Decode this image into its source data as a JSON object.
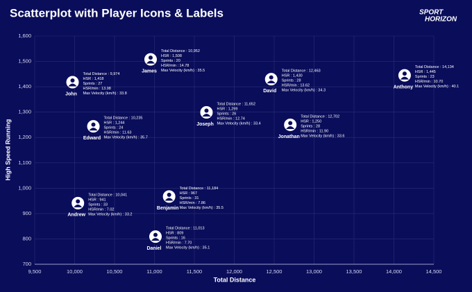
{
  "chart_data": {
    "type": "scatter",
    "title": "Scatterplot with Player Icons & Labels",
    "logo": [
      "SPORT",
      "HORIZON"
    ],
    "x_label": "Total Distance",
    "y_label": "High Speed Running",
    "xlim": [
      9500,
      14500
    ],
    "xticks": [
      {
        "value": 9500,
        "label": "9,500"
      },
      {
        "value": 10000,
        "label": "10,000"
      },
      {
        "value": 10500,
        "label": "10,500"
      },
      {
        "value": 11000,
        "label": "11,000"
      },
      {
        "value": 11500,
        "label": "11,500"
      },
      {
        "value": 12000,
        "label": "12,000"
      },
      {
        "value": 12500,
        "label": "12,500"
      },
      {
        "value": 13000,
        "label": "13,000"
      },
      {
        "value": 13500,
        "label": "13,500"
      },
      {
        "value": 14000,
        "label": "14,000"
      },
      {
        "value": 14500,
        "label": "14,500"
      }
    ],
    "ylim": [
      700,
      1600
    ],
    "yticks": [
      700,
      800,
      900,
      {
        "value": 1000,
        "label": "1,000"
      },
      {
        "value": 1100,
        "label": "1,100"
      },
      {
        "value": 1200,
        "label": "1,200"
      },
      {
        "value": 1300,
        "label": "1,300"
      },
      {
        "value": 1400,
        "label": "1,400"
      },
      {
        "value": 1500,
        "label": "1,500"
      },
      {
        "value": 1600,
        "label": "1,600"
      }
    ],
    "grid": true,
    "points": [
      {
        "name": "John",
        "x": 9974,
        "y": 1418,
        "details": [
          "Total Distance : 9,974",
          "HSR : 1,418",
          "Sprints : 27",
          "HSR/min : 13.98",
          "Max Velocity (km/h) : 33.8"
        ]
      },
      {
        "name": "James",
        "x": 10952,
        "y": 1508,
        "details": [
          "Total Distance : 10,952",
          "HSR : 1,508",
          "Sprints : 20",
          "HSR/min : 14.78",
          "Max Velocity (km/h) : 35.5"
        ]
      },
      {
        "name": "David",
        "x": 12463,
        "y": 1430,
        "details": [
          "Total Distance : 12,463",
          "HSR : 1,430",
          "Sprints : 28",
          "HSR/min : 13.62",
          "Max Velocity (km/h) : 34.3"
        ]
      },
      {
        "name": "Anthony",
        "x": 14134,
        "y": 1445,
        "details": [
          "Total Distance : 14,134",
          "HSR : 1,445",
          "Sprints : 23",
          "HSR/min : 10.70",
          "Max Velocity (km/h) : 40.1"
        ]
      },
      {
        "name": "Joseph",
        "x": 11652,
        "y": 1299,
        "details": [
          "Total Distance : 11,652",
          "HSR : 1,299",
          "Sprints : 26",
          "HSR/min : 12.74",
          "Max Velocity (km/h) : 33.4"
        ]
      },
      {
        "name": "Edward",
        "x": 10235,
        "y": 1244,
        "details": [
          "Total Distance : 10,235",
          "HSR : 1,244",
          "Sprints : 24",
          "HSR/min : 11.63",
          "Max Velocity (km/h) : 35.7"
        ]
      },
      {
        "name": "Jonathan",
        "x": 12702,
        "y": 1250,
        "details": [
          "Total Distance : 12,702",
          "HSR : 1,250",
          "Sprints : 28",
          "HSR/min : 11.90",
          "Max Velocity (km/h) : 33.6"
        ]
      },
      {
        "name": "Andrew",
        "x": 10041,
        "y": 941,
        "details": [
          "Total Distance : 10,041",
          "HSR : 941",
          "Sprints : 33",
          "HSR/min : 7.02",
          "Max Velocity (km/h) : 33.2"
        ]
      },
      {
        "name": "Benjamin",
        "x": 11184,
        "y": 967,
        "details": [
          "Total Distance : 11,184",
          "HSR : 967",
          "Sprints : 31",
          "HSR/min : 7.86",
          "Max Velocity (km/h) : 35.5"
        ]
      },
      {
        "name": "Daniel",
        "x": 11013,
        "y": 809,
        "details": [
          "Total Distance : 11,013",
          "HSR : 809",
          "Sprints : 16",
          "HSR/min : 7.70",
          "Max Velocity (km/h) : 35.1"
        ]
      }
    ]
  }
}
